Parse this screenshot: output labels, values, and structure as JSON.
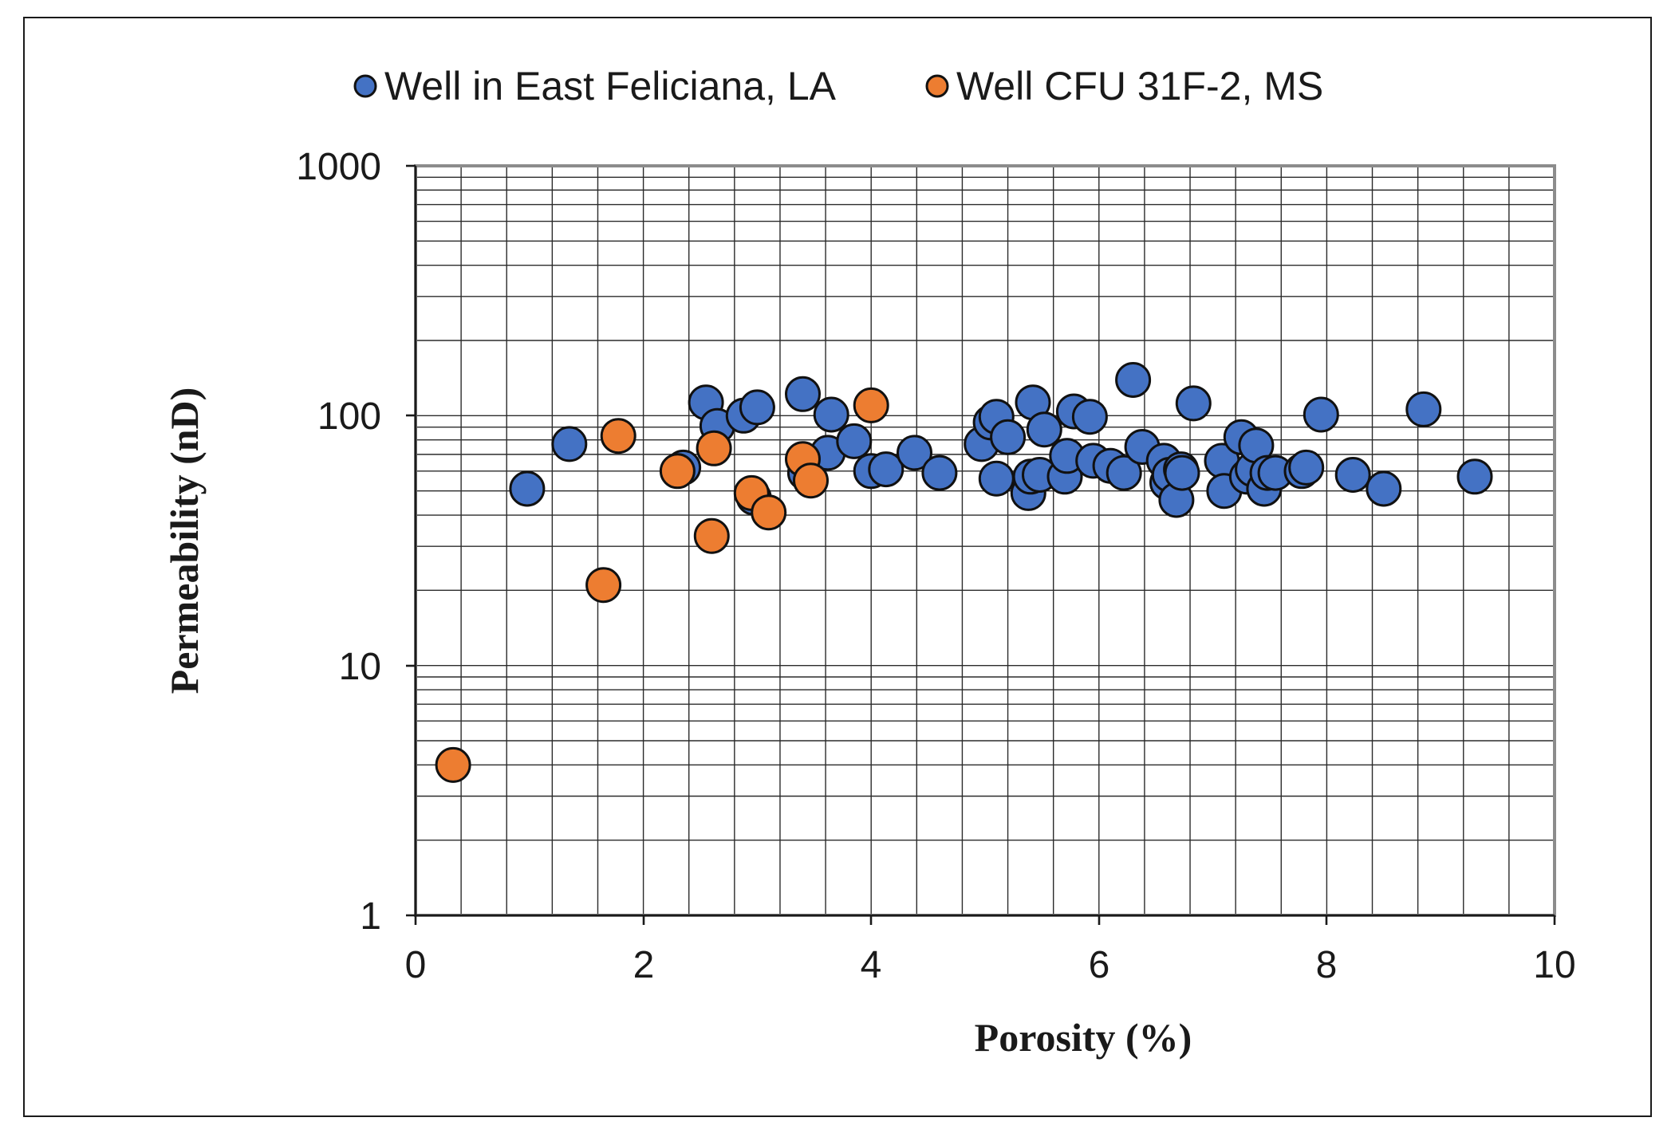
{
  "chart_data": {
    "type": "scatter",
    "xlabel": "Porosity (%)",
    "ylabel": "Permeability (nD)",
    "xlim": [
      0,
      10
    ],
    "ylim": [
      1,
      1000
    ],
    "y_scale": "log",
    "x_ticks": [
      "0",
      "2",
      "4",
      "6",
      "8",
      "10"
    ],
    "y_ticks": [
      "1",
      "10",
      "100",
      "1000"
    ],
    "x_tick_values": [
      0,
      2,
      4,
      6,
      8,
      10
    ],
    "y_tick_values": [
      1,
      10,
      100,
      1000
    ],
    "x_minor_step": 0.4,
    "grid": true,
    "legend_position": "top-center",
    "series": [
      {
        "name": "Well in East Feliciana, LA",
        "color": "#4472C4",
        "points": [
          [
            0.98,
            51
          ],
          [
            1.35,
            77
          ],
          [
            2.35,
            62
          ],
          [
            2.55,
            113
          ],
          [
            2.65,
            91
          ],
          [
            2.88,
            100
          ],
          [
            3.0,
            108
          ],
          [
            2.97,
            47
          ],
          [
            3.4,
            122
          ],
          [
            3.42,
            59
          ],
          [
            3.65,
            101
          ],
          [
            3.62,
            71
          ],
          [
            3.85,
            79
          ],
          [
            4.0,
            60
          ],
          [
            4.13,
            61
          ],
          [
            4.38,
            71
          ],
          [
            4.6,
            59
          ],
          [
            4.97,
            77
          ],
          [
            5.05,
            94
          ],
          [
            5.1,
            99
          ],
          [
            5.1,
            56
          ],
          [
            5.2,
            82
          ],
          [
            5.38,
            49
          ],
          [
            5.4,
            57
          ],
          [
            5.42,
            113
          ],
          [
            5.48,
            58
          ],
          [
            5.52,
            88
          ],
          [
            5.7,
            57
          ],
          [
            5.72,
            69
          ],
          [
            5.78,
            104
          ],
          [
            5.92,
            99
          ],
          [
            5.95,
            66
          ],
          [
            6.1,
            63
          ],
          [
            6.22,
            59
          ],
          [
            6.3,
            139
          ],
          [
            6.38,
            75
          ],
          [
            6.57,
            66
          ],
          [
            6.6,
            54
          ],
          [
            6.62,
            58
          ],
          [
            6.68,
            46
          ],
          [
            6.72,
            61
          ],
          [
            6.73,
            59
          ],
          [
            6.83,
            112
          ],
          [
            7.08,
            66
          ],
          [
            7.1,
            50
          ],
          [
            7.25,
            82
          ],
          [
            7.3,
            57
          ],
          [
            7.35,
            61
          ],
          [
            7.38,
            76
          ],
          [
            7.45,
            51
          ],
          [
            7.48,
            59
          ],
          [
            7.55,
            59
          ],
          [
            7.78,
            60
          ],
          [
            7.82,
            62
          ],
          [
            7.95,
            101
          ],
          [
            8.23,
            58
          ],
          [
            8.5,
            51
          ],
          [
            8.85,
            106
          ],
          [
            9.3,
            57
          ]
        ]
      },
      {
        "name": "Well CFU 31F-2, MS",
        "color": "#ED7D31",
        "points": [
          [
            0.33,
            4.0
          ],
          [
            1.65,
            21
          ],
          [
            1.78,
            83
          ],
          [
            2.3,
            60
          ],
          [
            2.6,
            33
          ],
          [
            2.62,
            74
          ],
          [
            2.95,
            49
          ],
          [
            3.1,
            41
          ],
          [
            3.4,
            67
          ],
          [
            3.47,
            55
          ],
          [
            4.0,
            110
          ]
        ]
      }
    ]
  }
}
